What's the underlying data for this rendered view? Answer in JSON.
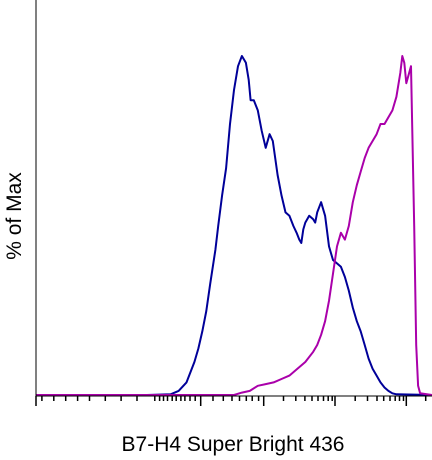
{
  "chart_data": {
    "type": "line",
    "title": "",
    "xlabel": "B7-H4 Super Bright 436",
    "ylabel": "% of Max",
    "x_scale": "logicle",
    "grid": false,
    "legend": "none",
    "colors": {
      "series_1": "#000099",
      "series_2": "#aa00aa",
      "axes": "#000000"
    },
    "x_domain": [
      0,
      100
    ],
    "y_domain": [
      0,
      100
    ],
    "series": [
      {
        "color": "#000099",
        "points": [
          [
            0,
            0.3
          ],
          [
            28,
            0.3
          ],
          [
            34,
            0.5
          ],
          [
            36,
            1.5
          ],
          [
            38,
            4
          ],
          [
            40,
            10
          ],
          [
            41,
            14
          ],
          [
            42,
            19
          ],
          [
            43,
            25
          ],
          [
            44,
            33
          ],
          [
            45.3,
            43
          ],
          [
            46,
            50
          ],
          [
            47,
            59
          ],
          [
            48,
            67
          ],
          [
            49,
            80
          ],
          [
            50,
            90
          ],
          [
            51,
            97
          ],
          [
            52,
            100
          ],
          [
            53,
            98
          ],
          [
            53.7,
            93
          ],
          [
            54.2,
            87
          ],
          [
            55,
            87
          ],
          [
            56,
            84
          ],
          [
            57,
            78
          ],
          [
            58,
            73
          ],
          [
            59,
            77
          ],
          [
            59.8,
            75
          ],
          [
            61,
            65
          ],
          [
            62,
            59
          ],
          [
            63,
            54
          ],
          [
            64,
            53
          ],
          [
            65,
            50
          ],
          [
            65.8,
            48
          ],
          [
            66.5,
            46
          ],
          [
            67,
            45
          ],
          [
            67.5,
            49
          ],
          [
            68,
            51
          ],
          [
            69,
            53
          ],
          [
            70,
            52
          ],
          [
            70.5,
            51
          ],
          [
            71,
            54
          ],
          [
            72,
            57
          ],
          [
            73,
            53
          ],
          [
            74,
            44
          ],
          [
            75,
            40
          ],
          [
            76,
            39
          ],
          [
            77,
            38
          ],
          [
            78,
            35
          ],
          [
            79,
            31
          ],
          [
            80,
            26
          ],
          [
            81,
            22
          ],
          [
            82,
            19
          ],
          [
            83,
            15
          ],
          [
            84,
            11
          ],
          [
            85,
            8
          ],
          [
            86,
            6
          ],
          [
            87,
            4
          ],
          [
            88,
            2.5
          ],
          [
            89,
            1.5
          ],
          [
            90,
            0.8
          ],
          [
            91,
            0.5
          ],
          [
            100,
            0.3
          ]
        ]
      },
      {
        "color": "#aa00aa",
        "points": [
          [
            0,
            0.3
          ],
          [
            50,
            0.3
          ],
          [
            52,
            1
          ],
          [
            54,
            1.5
          ],
          [
            56,
            3
          ],
          [
            58,
            3.5
          ],
          [
            60,
            4
          ],
          [
            62,
            5
          ],
          [
            64,
            6
          ],
          [
            66,
            8
          ],
          [
            68,
            10
          ],
          [
            70,
            13
          ],
          [
            71,
            15
          ],
          [
            72,
            18
          ],
          [
            73,
            22
          ],
          [
            74,
            28
          ],
          [
            75,
            36
          ],
          [
            76,
            44
          ],
          [
            77,
            48
          ],
          [
            78,
            46
          ],
          [
            79,
            50
          ],
          [
            80,
            57
          ],
          [
            81,
            62
          ],
          [
            82,
            66
          ],
          [
            83,
            70
          ],
          [
            84,
            73
          ],
          [
            85,
            75
          ],
          [
            86,
            77
          ],
          [
            87,
            80
          ],
          [
            88,
            80
          ],
          [
            89,
            82
          ],
          [
            90,
            84
          ],
          [
            91,
            88
          ],
          [
            92,
            95
          ],
          [
            92.5,
            100
          ],
          [
            93,
            98
          ],
          [
            93.5,
            92
          ],
          [
            94,
            94
          ],
          [
            94.7,
            97
          ],
          [
            95.5,
            50
          ],
          [
            96,
            15
          ],
          [
            96.5,
            3
          ],
          [
            97,
            0.8
          ],
          [
            100,
            0.3
          ]
        ]
      }
    ],
    "x_major_ticks": [
      0,
      41.6,
      57.5,
      75.5,
      93.5
    ],
    "x_minor_ticks": [
      1.5,
      4.5,
      7.5,
      10.5,
      13.5,
      17.5,
      21.5,
      25.5,
      30,
      31.2,
      32.2,
      33.2,
      34.4,
      35.4,
      36.6,
      37.6,
      38.9,
      40.2,
      44.7,
      47.3,
      49.5,
      51.4,
      53.1,
      54.6,
      56.2,
      62.5,
      65.6,
      67.9,
      69.7,
      71.2,
      72.6,
      73.8,
      74.8,
      80.6,
      83.7,
      86.1,
      87.8,
      89.4,
      90.7,
      91.8,
      92.8,
      98.4
    ]
  }
}
